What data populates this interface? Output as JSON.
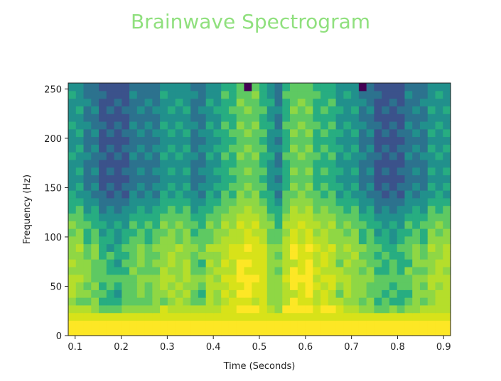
{
  "chart_data": {
    "type": "heatmap",
    "title": "Brainwave Spectrogram",
    "xlabel": "Time (Seconds)",
    "ylabel": "Frequency (Hz)",
    "xlim": [
      0.085,
      0.915
    ],
    "ylim": [
      0,
      256
    ],
    "x_ticks": [
      "0.1",
      "0.2",
      "0.3",
      "0.4",
      "0.5",
      "0.6",
      "0.7",
      "0.8",
      "0.9"
    ],
    "y_ticks": [
      "0",
      "50",
      "100",
      "150",
      "200",
      "250"
    ],
    "colormap": "viridis",
    "grid": false,
    "time_bins": 50,
    "freq_bins": 33,
    "intensity_rows_low_to_high_freq": [
      "99999999999999999999999999999999999999999999999999",
      "99999999999999999999999999999999999999999999999999",
      "88888888888888888888888888888888888888888888888888",
      "77877778777787778877777877778777788877777787778777",
      "65676667666756766676676657676766676766676766676677",
      "76767657676767676576767767676567676576767676577677",
      "76676767676776767677676767676767767676767767676767",
      "77767777677777677776777777677777677776777777677777",
      "66767666766676676667667667666767766766676676766676",
      "76767657676767676576767767676567676576767676577677",
      "66676766676667666766676667666766676667666766676667",
      "67676567676766767677676767676767767676767667676767",
      "66566656665666566656665666566656665666566656665666",
      "56565656565656565656565656565656565656565656565656",
      "65656565656565656565656565656565656565656565656565",
      "55555555555555555555555555555555555555555555555555",
      "45454545454545454545454545454545454545454545454545",
      "44444444444444444444444444444444444444444444444444",
      "43434343434343434343434343434343434343434343434343",
      "34343434343434343434343434343434343434343434343434",
      "33333333333333333333333333333333333333333333333333",
      "34343434343434343434343434343434343434343434343434",
      "33333333333333333333333333333333333333333333333333",
      "43434343434343434343434343434343434343434343434343",
      "34343434343434343434343434343434343434343434343434",
      "33333333333333333333333333333333333333333333333333",
      "34343434343434343434343434343434343434343434343434",
      "43434343434343434343434343434343434343434343434343",
      "33333333333333333333333333333333333333333333333333",
      "34343434343434343434343434343434343434343434343434",
      "33433343334333433343334333433343334333433343334333",
      "43334333433343334333433343334333433343334333433343",
      "33333333333333333333333333333333333333333333333333"
    ],
    "column_offsets": [
      0,
      0,
      -1,
      -1,
      -2,
      -2,
      -2,
      -2,
      -1,
      -1,
      -1,
      -1,
      0,
      0,
      0,
      0,
      -1,
      -1,
      0,
      0,
      1,
      1,
      2,
      2,
      2,
      1,
      0,
      -1,
      1,
      2,
      2,
      2,
      1,
      1,
      1,
      0,
      0,
      0,
      -1,
      -1,
      -2,
      -2,
      -2,
      -2,
      -1,
      -1,
      -1,
      0,
      0,
      0
    ]
  }
}
